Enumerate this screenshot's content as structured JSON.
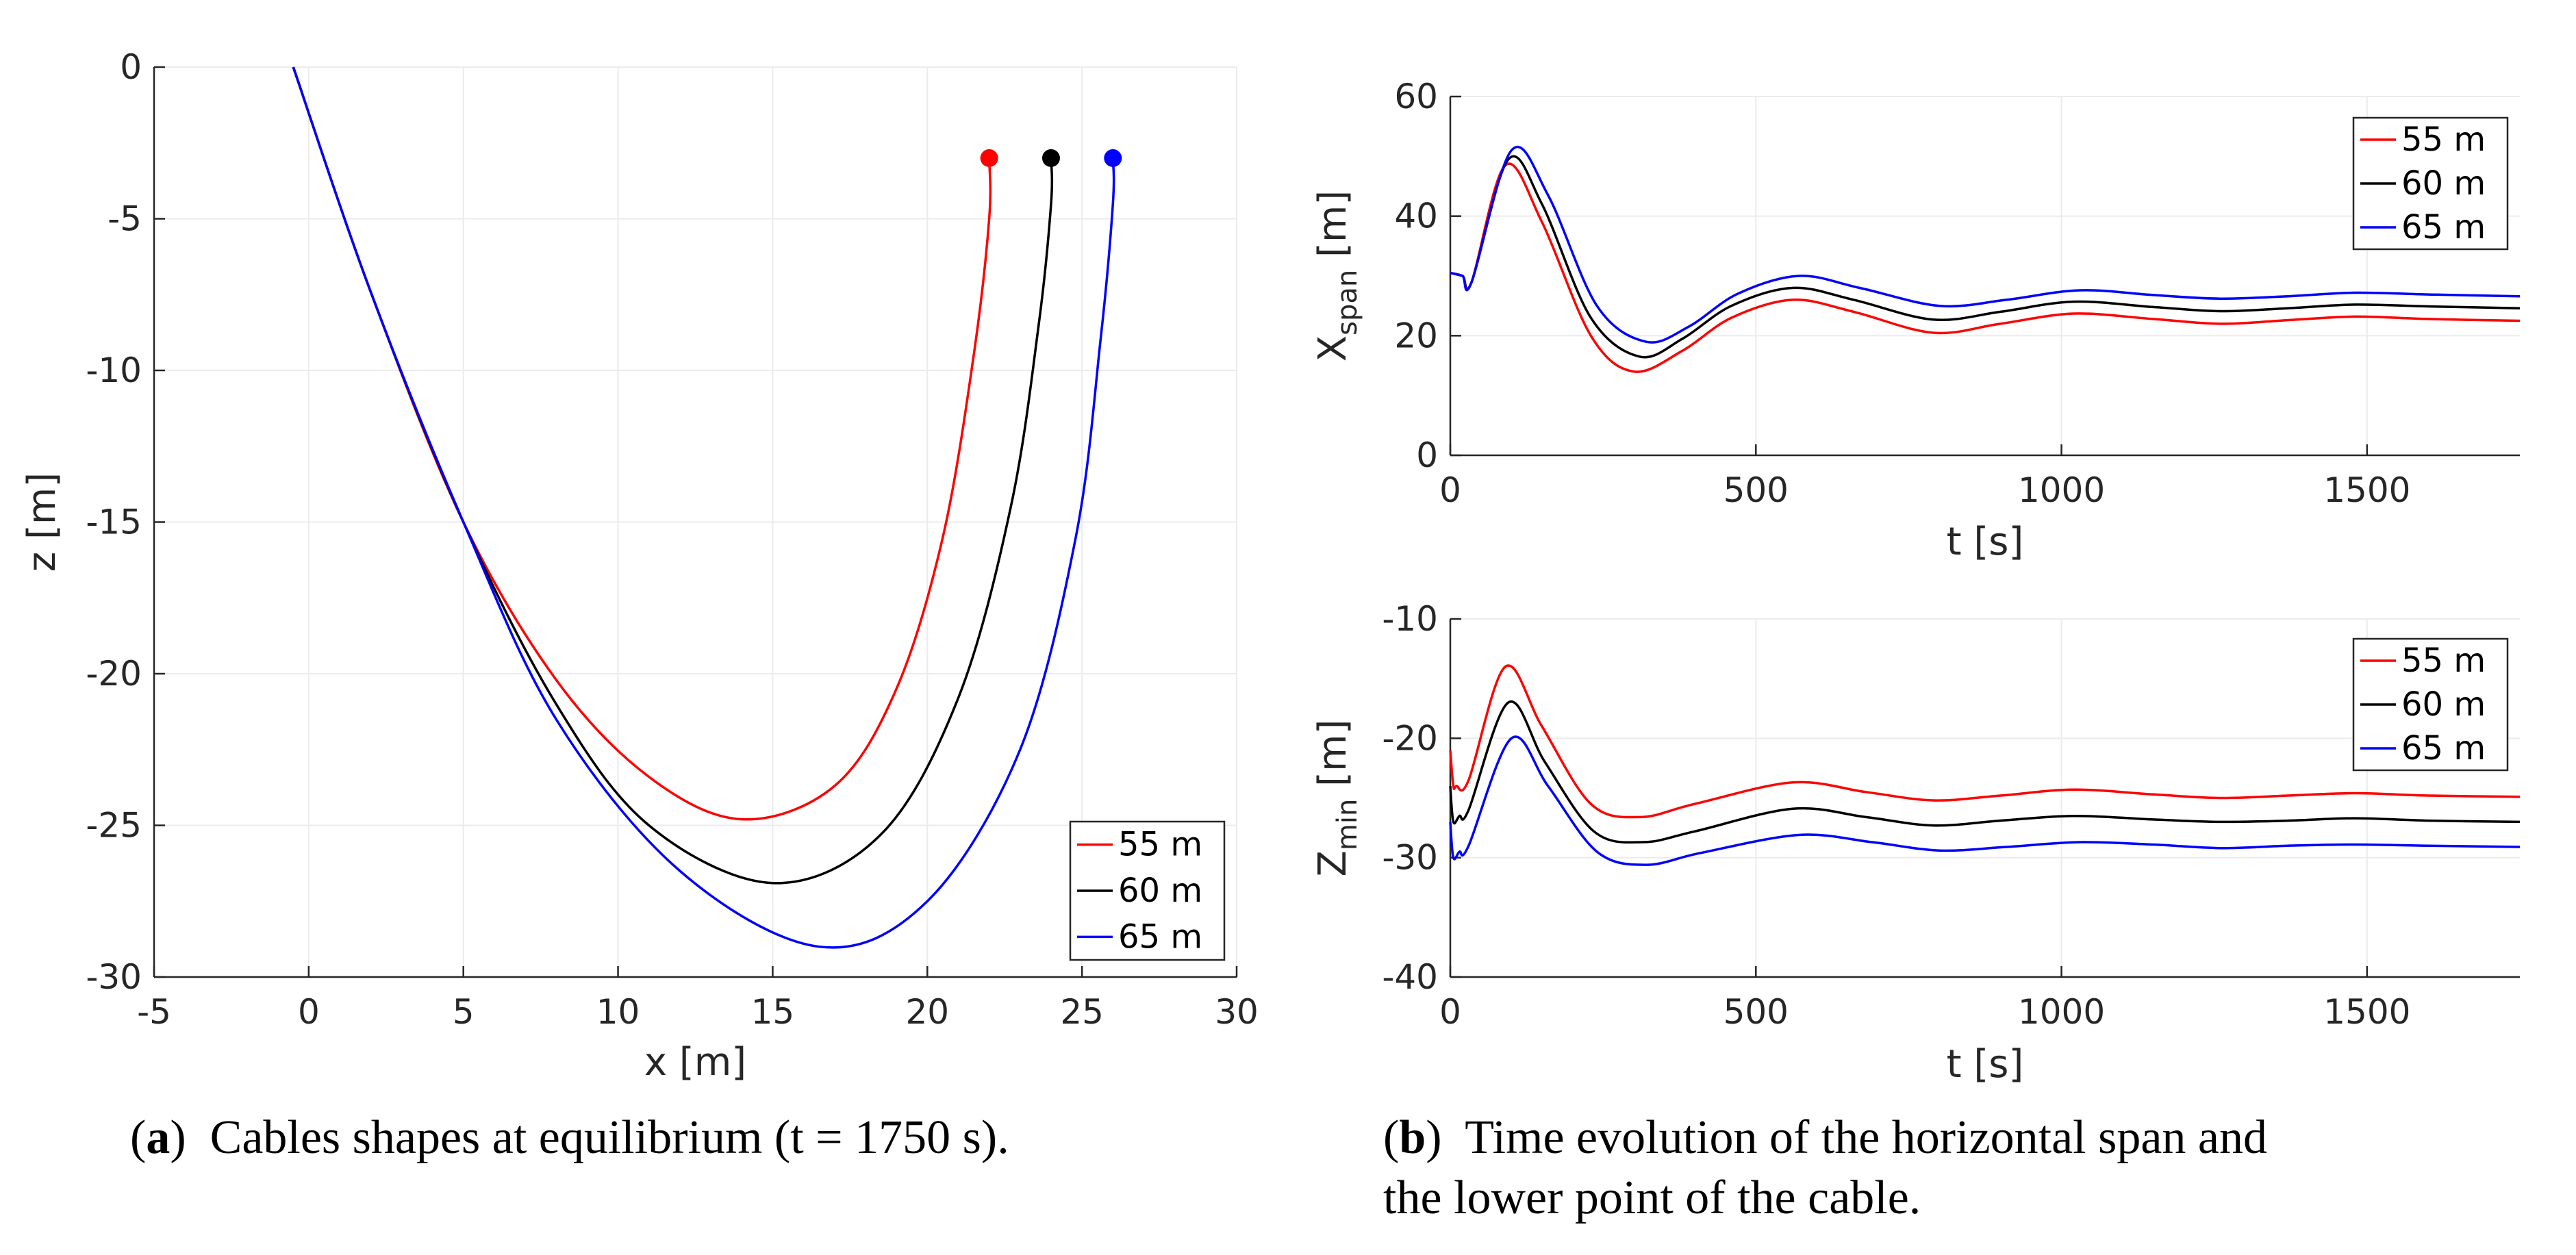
{
  "colors": {
    "s55": "#ff0000",
    "s60": "#000000",
    "s65": "#0000ff",
    "grid": "#ebebeb",
    "axis": "#262626"
  },
  "captions": {
    "a": {
      "label": "a",
      "text": "Cables shapes at equilibrium (t = 1750 s)."
    },
    "b": {
      "label": "b",
      "line1": "Time evolution of the horizontal span and",
      "line2": "the lower point of the cable."
    }
  },
  "chart_data": [
    {
      "id": "a",
      "type": "line",
      "xlabel": "x [m]",
      "ylabel": "z [m]",
      "xlim": [
        -5,
        30
      ],
      "ylim": [
        -30,
        0
      ],
      "xticks": [
        -5,
        0,
        5,
        10,
        15,
        20,
        25,
        30
      ],
      "yticks": [
        0,
        -5,
        -10,
        -15,
        -20,
        -25,
        -30
      ],
      "grid": true,
      "legend": {
        "position": "bottom-right",
        "entries": [
          "55 m",
          "60 m",
          "65 m"
        ]
      },
      "series": [
        {
          "name": "55 m",
          "color": "#ff0000",
          "endpoint": [
            22,
            -3
          ],
          "x": [
            -0.5,
            2,
            5,
            8,
            11,
            14,
            17,
            19,
            20.5,
            21.5,
            22,
            22
          ],
          "y": [
            0,
            -7.4,
            -15,
            -20.2,
            -23.4,
            -24.8,
            -23.7,
            -20.5,
            -15.5,
            -9.5,
            -5,
            -3
          ]
        },
        {
          "name": "60 m",
          "color": "#000000",
          "endpoint": [
            24,
            -3
          ],
          "x": [
            -0.5,
            2,
            5,
            8,
            11,
            15,
            18.5,
            21,
            22.7,
            23.6,
            24,
            24
          ],
          "y": [
            0,
            -7.4,
            -15,
            -21,
            -25,
            -26.9,
            -25.3,
            -20.8,
            -14.5,
            -8.5,
            -4.5,
            -3
          ]
        },
        {
          "name": "65 m",
          "color": "#0000ff",
          "endpoint": [
            26,
            -3
          ],
          "x": [
            -0.5,
            2,
            5,
            8,
            12,
            16.5,
            20,
            23,
            24.8,
            25.6,
            26,
            26
          ],
          "y": [
            0,
            -7.4,
            -15,
            -21.5,
            -26.5,
            -29,
            -27.5,
            -22.5,
            -15.5,
            -9,
            -4.5,
            -3
          ]
        }
      ]
    },
    {
      "id": "b1",
      "type": "line",
      "xlabel": "t [s]",
      "ylabel": "X",
      "ylabel_sub": "span",
      "ylabel_unit": "[m]",
      "xlim": [
        0,
        1750
      ],
      "ylim": [
        0,
        60
      ],
      "xticks": [
        0,
        500,
        1000,
        1500
      ],
      "yticks": [
        0,
        20,
        40,
        60
      ],
      "grid": true,
      "legend": {
        "position": "top-right",
        "entries": [
          "55 m",
          "60 m",
          "65 m"
        ]
      },
      "series": [
        {
          "name": "55 m",
          "color": "#ff0000",
          "t": [
            0,
            20,
            35,
            90,
            150,
            230,
            300,
            380,
            460,
            560,
            660,
            790,
            900,
            1020,
            1150,
            1260,
            1370,
            1480,
            1600,
            1750
          ],
          "v": [
            30.5,
            30,
            29,
            48.5,
            39,
            20,
            14,
            17.5,
            23,
            26,
            24,
            20.5,
            22,
            23.7,
            22.8,
            22,
            22.6,
            23.2,
            22.8,
            22.5
          ]
        },
        {
          "name": "60 m",
          "color": "#000000",
          "t": [
            0,
            20,
            35,
            95,
            150,
            230,
            310,
            380,
            460,
            560,
            660,
            790,
            900,
            1020,
            1150,
            1260,
            1370,
            1480,
            1600,
            1750
          ],
          "v": [
            30.5,
            30,
            29,
            49.5,
            42,
            23,
            16.5,
            19.5,
            25,
            28,
            26,
            22.7,
            24,
            25.7,
            24.8,
            24.1,
            24.6,
            25.2,
            24.9,
            24.6
          ]
        },
        {
          "name": "65 m",
          "color": "#0000ff",
          "t": [
            0,
            20,
            35,
            100,
            160,
            240,
            320,
            390,
            470,
            570,
            670,
            800,
            910,
            1030,
            1150,
            1260,
            1370,
            1480,
            1600,
            1750
          ],
          "v": [
            30.5,
            30,
            29,
            51,
            43.5,
            25,
            19,
            21.5,
            27,
            30,
            28,
            25,
            26,
            27.6,
            26.8,
            26.2,
            26.6,
            27.2,
            26.9,
            26.6
          ]
        }
      ]
    },
    {
      "id": "b2",
      "type": "line",
      "xlabel": "t [s]",
      "ylabel": "Z",
      "ylabel_sub": "min",
      "ylabel_unit": "[m]",
      "xlim": [
        0,
        1750
      ],
      "ylim": [
        -40,
        -10
      ],
      "xticks": [
        0,
        500,
        1000,
        1500
      ],
      "yticks": [
        -10,
        -20,
        -30,
        -40
      ],
      "grid": true,
      "legend": {
        "position": "top-right",
        "entries": [
          "55 m",
          "60 m",
          "65 m"
        ]
      },
      "series": [
        {
          "name": "55 m",
          "color": "#ff0000",
          "t": [
            0,
            5,
            10,
            30,
            90,
            150,
            230,
            310,
            400,
            560,
            680,
            790,
            900,
            1020,
            1150,
            1260,
            1370,
            1480,
            1600,
            1750
          ],
          "v": [
            -21,
            -24,
            -24,
            -23.5,
            -14,
            -19,
            -25.5,
            -26.6,
            -25.5,
            -23.7,
            -24.5,
            -25.2,
            -24.8,
            -24.3,
            -24.7,
            -25,
            -24.8,
            -24.6,
            -24.8,
            -24.9
          ]
        },
        {
          "name": "60 m",
          "color": "#000000",
          "t": [
            0,
            5,
            15,
            30,
            95,
            155,
            235,
            315,
            400,
            560,
            680,
            790,
            900,
            1020,
            1150,
            1260,
            1370,
            1480,
            1600,
            1750
          ],
          "v": [
            -24,
            -27,
            -26.5,
            -26,
            -17,
            -22,
            -27.8,
            -28.7,
            -27.8,
            -25.9,
            -26.6,
            -27.3,
            -26.9,
            -26.5,
            -26.8,
            -27,
            -26.9,
            -26.7,
            -26.9,
            -27
          ]
        },
        {
          "name": "65 m",
          "color": "#0000ff",
          "t": [
            0,
            5,
            15,
            30,
            100,
            160,
            240,
            320,
            410,
            570,
            690,
            800,
            910,
            1030,
            1150,
            1260,
            1370,
            1480,
            1600,
            1750
          ],
          "v": [
            -27,
            -30,
            -29.5,
            -29,
            -20,
            -24,
            -29.5,
            -30.6,
            -29.6,
            -28.1,
            -28.7,
            -29.4,
            -29.1,
            -28.7,
            -28.9,
            -29.2,
            -29,
            -28.9,
            -29,
            -29.1
          ]
        }
      ]
    }
  ]
}
